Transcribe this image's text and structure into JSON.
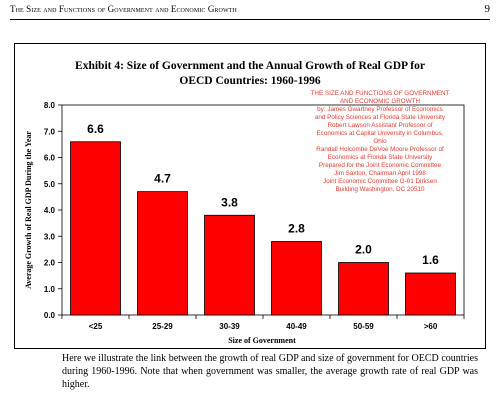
{
  "page": {
    "running_head": "The Size and Functions of Government and Economic Growth",
    "page_number": "9"
  },
  "watermark": {
    "lines": [
      "THE SIZE AND FUNCTIONS OF GOVERNMENT",
      "AND ECONOMIC GROWTH",
      "by: James Gwartney Professor of Economics",
      "and Policy Sciences at Florida State University",
      "Robert Lawson Assistant Professor of",
      "Economics at Capital University in Columbus,",
      "Ohio",
      "Randall Holcombe DeVoe Moore Professor of",
      "Economics at Florida State University",
      "Prepared for the Joint Economic Committee",
      "Jim Saxton, Chairman April 1998",
      "Joint Economic Committee G-01 Dirksen",
      "Building Washington, DC 20510"
    ]
  },
  "body_text": "Here we illustrate the link between the growth of real GDP and size of government for OECD countries during 1960-1996.  Note that when government was smaller, the average growth rate of real GDP was higher.",
  "chart_data": {
    "type": "bar",
    "title_lines": [
      "Exhibit 4: Size of Government and the Annual Growth of Real GDP for",
      "OECD Countries:  1960-1996"
    ],
    "categories": [
      "<25",
      "25-29",
      "30-39",
      "40-49",
      "50-59",
      ">60"
    ],
    "values": [
      6.6,
      4.7,
      3.8,
      2.8,
      2.0,
      1.6
    ],
    "value_labels": [
      "6.6",
      "4.7",
      "3.8",
      "2.8",
      "2.0",
      "1.6"
    ],
    "xlabel": "Size of Government",
    "ylabel": "Average Growth of Real GDP During the Year",
    "ylim": [
      0,
      8
    ],
    "y_ticks": [
      "0.0",
      "1.0",
      "2.0",
      "3.0",
      "4.0",
      "5.0",
      "6.0",
      "7.0",
      "8.0"
    ],
    "y_tick_values": [
      0,
      1,
      2,
      3,
      4,
      5,
      6,
      7,
      8
    ],
    "bar_color": "#ff0000",
    "plot_area_color": "#ffffff",
    "grid": false,
    "legend": "none"
  }
}
